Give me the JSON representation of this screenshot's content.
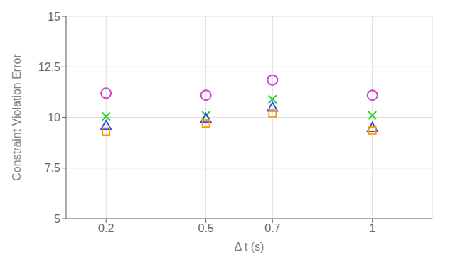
{
  "chart_data": {
    "type": "scatter",
    "x": [
      0.2,
      0.5,
      0.7,
      1
    ],
    "series": [
      {
        "color": "#CC44CC",
        "marker": "circle",
        "values": [
          11.2,
          11.1,
          11.85,
          11.1
        ]
      },
      {
        "color": "#22CC22",
        "marker": "x",
        "values": [
          10.05,
          10.1,
          10.9,
          10.1
        ]
      },
      {
        "color": "#2244FF",
        "marker": "triangle",
        "values": [
          9.6,
          9.95,
          10.5,
          9.5
        ]
      },
      {
        "color": "#FF9900",
        "marker": "square",
        "values": [
          9.3,
          9.7,
          10.2,
          9.35
        ]
      }
    ],
    "xlabel": "Δ t (s)",
    "ylabel": "Constraint Violation Error",
    "xlim": [
      0.08,
      1.18
    ],
    "ylim": [
      5,
      15
    ],
    "xticks": [
      0.2,
      0.5,
      0.7,
      1
    ],
    "yticks": [
      5,
      7.5,
      10,
      12.5,
      15
    ],
    "grid": true
  }
}
